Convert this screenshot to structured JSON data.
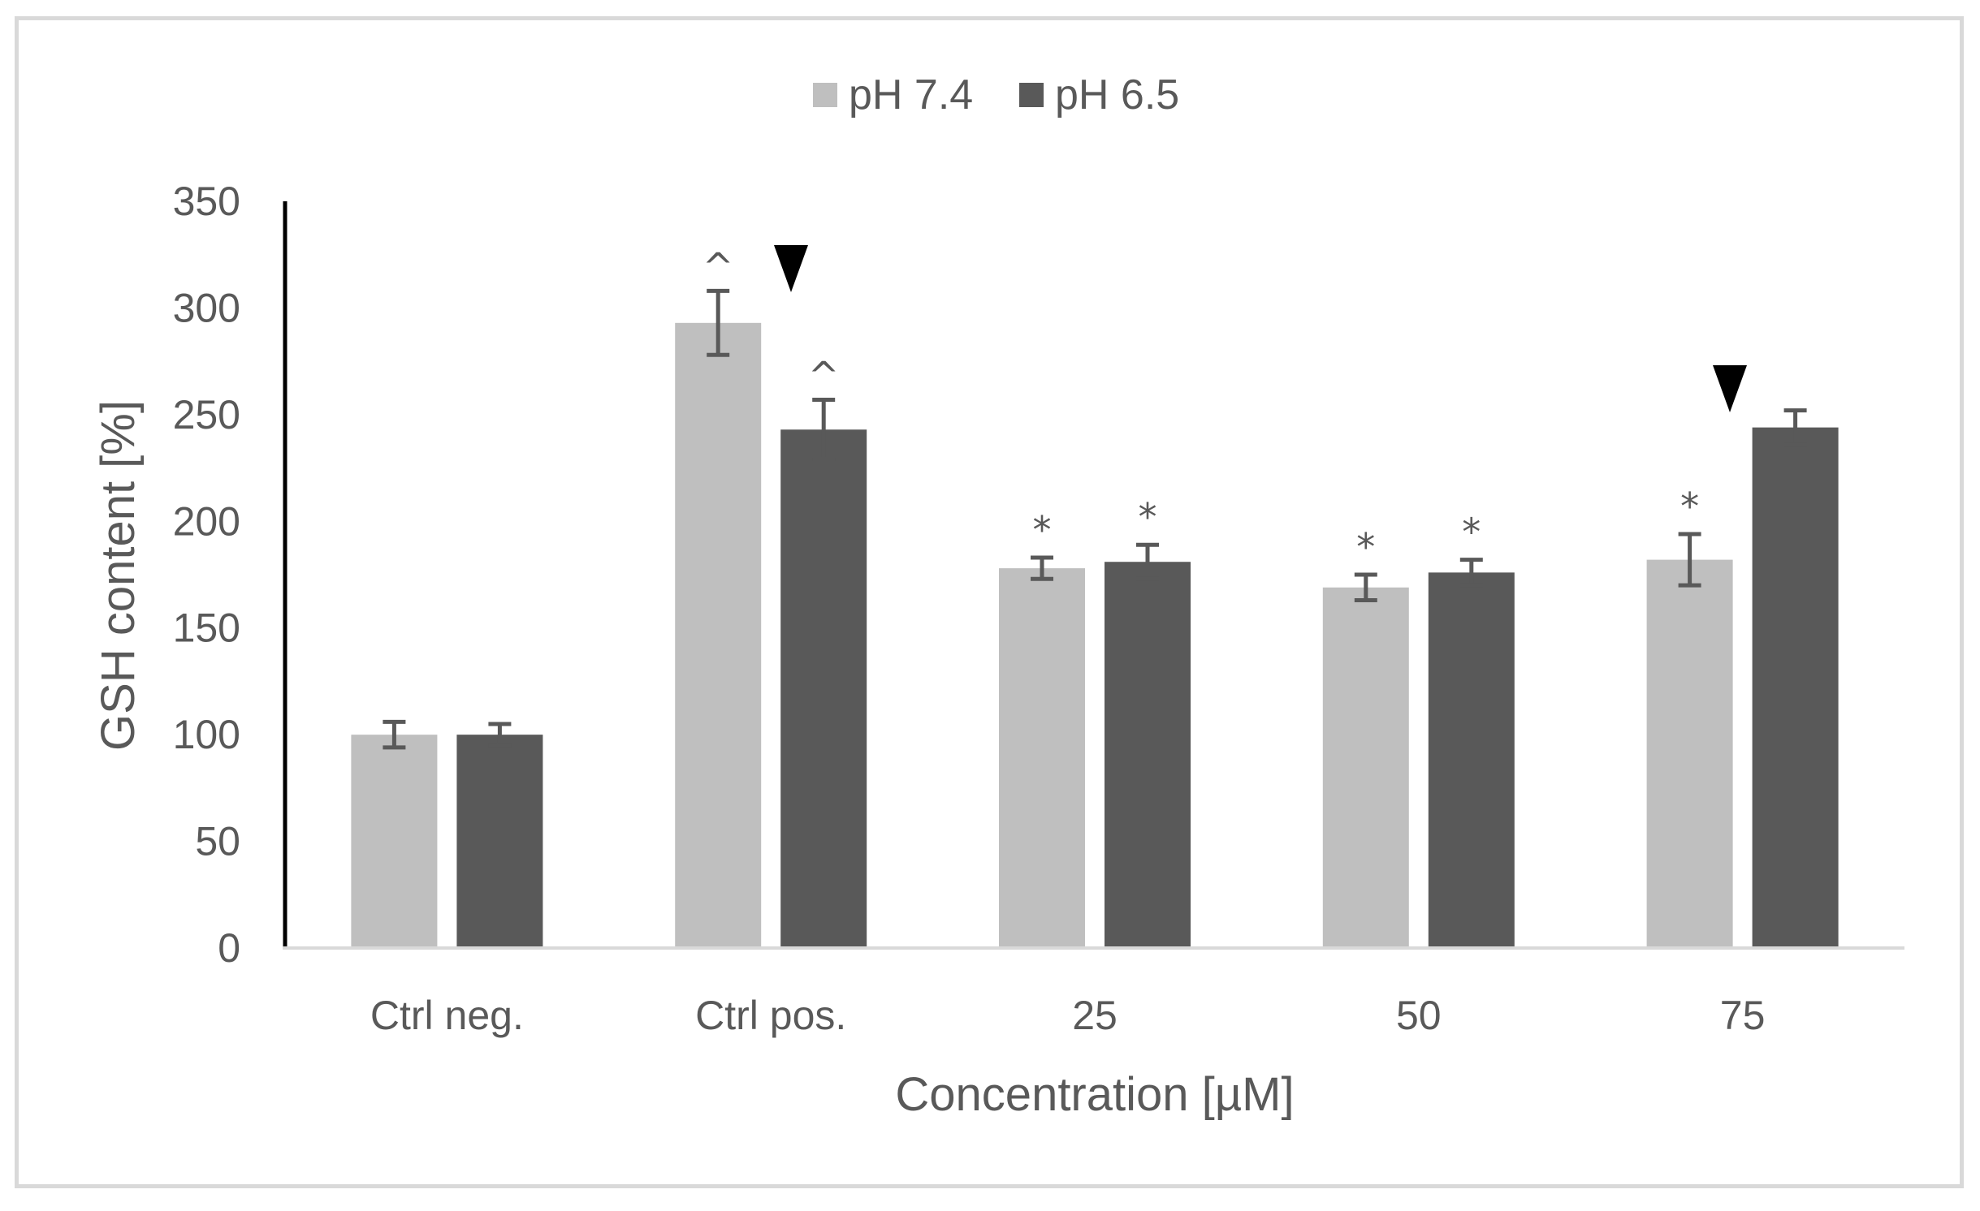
{
  "chart_data": {
    "type": "bar",
    "title": "",
    "xlabel": "Concentration [µM]",
    "ylabel": "GSH content [%]",
    "ylim": [
      0,
      350
    ],
    "yticks": [
      0,
      50,
      100,
      150,
      200,
      250,
      300,
      350
    ],
    "categories": [
      "Ctrl neg.",
      "Ctrl pos.",
      "25",
      "50",
      "75"
    ],
    "legend_position": "top-center",
    "series": [
      {
        "name": "pH 7.4",
        "color": "#bfbfbf",
        "values": [
          100,
          293,
          178,
          169,
          182
        ],
        "errors": [
          6,
          15,
          5,
          6,
          12
        ],
        "annotations": [
          "",
          "^",
          "*",
          "*",
          "*"
        ]
      },
      {
        "name": "pH 6.5",
        "color": "#595959",
        "values": [
          100,
          243,
          181,
          176,
          244
        ],
        "errors": [
          5,
          14,
          8,
          6,
          8
        ],
        "annotations": [
          "",
          "^",
          "*",
          "*",
          ""
        ]
      }
    ],
    "group_markers": [
      {
        "category_index": 1,
        "symbol": "▼"
      },
      {
        "category_index": 4,
        "symbol": "▼"
      }
    ]
  }
}
